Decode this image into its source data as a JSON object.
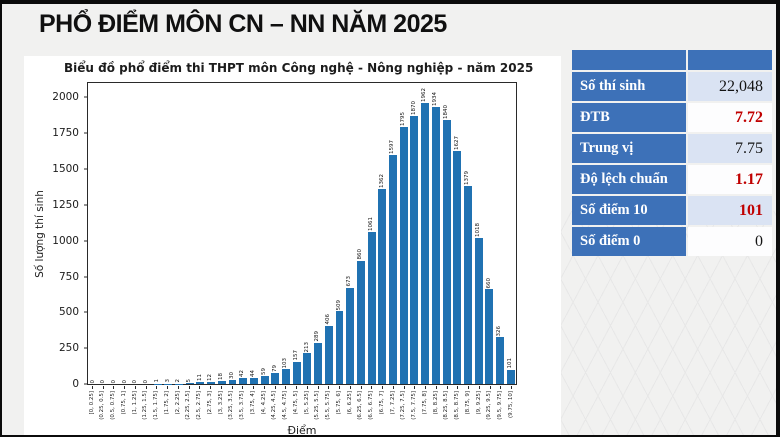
{
  "page": {
    "title": "PHỔ ĐIỂM MÔN CN – NN NĂM 2025"
  },
  "colors": {
    "bar_blue": "#2072b2",
    "table_blue": "#3d71b8",
    "value_red": "#c00000",
    "value_black": "#141414",
    "row_alt": "#dae3f3",
    "row_main": "#fdfdfe"
  },
  "chart_data": {
    "type": "bar",
    "title": "Biểu đồ phổ điểm thi THPT môn Công nghệ - Nông nghiệp - năm 2025",
    "xlabel": "Điểm",
    "ylabel": "Số lượng thí sinh",
    "ylim": [
      0,
      2100
    ],
    "yticks": [
      0,
      250,
      500,
      750,
      1000,
      1250,
      1500,
      1750,
      2000
    ],
    "grid": false,
    "legend": "none",
    "bar_labels_shown": true,
    "categories": [
      "[0, 0.25]",
      "(0.25, 0.5]",
      "(0.5, 0.75]",
      "(0.75, 1]",
      "(1, 1.25]",
      "(1.25, 1.5]",
      "(1.5, 1.75]",
      "(1.75, 2]",
      "(2, 2.25]",
      "(2.25, 2.5]",
      "(2.5, 2.75]",
      "(2.75, 3]",
      "(3, 3.25]",
      "(3.25, 3.5]",
      "(3.5, 3.75]",
      "(3.75, 4]",
      "(4, 4.25]",
      "(4.25, 4.5]",
      "(4.5, 4.75]",
      "(4.75, 5]",
      "(5, 5.25]",
      "(5.25, 5.5]",
      "(5.5, 5.75]",
      "(5.75, 6]",
      "(6, 6.25]",
      "(6.25, 6.5]",
      "(6.5, 6.75]",
      "(6.75, 7]",
      "(7, 7.25]",
      "(7.25, 7.5]",
      "(7.5, 7.75]",
      "(7.75, 8]",
      "(8, 8.25]",
      "(8.25, 8.5]",
      "(8.5, 8.75]",
      "(8.75, 9]",
      "(9, 9.25]",
      "(9.25, 9.5]",
      "(9.5, 9.75]",
      "(9.75, 10]"
    ],
    "values": [
      0,
      0,
      0,
      0,
      0,
      0,
      1,
      3,
      2,
      5,
      11,
      12,
      18,
      30,
      42,
      44,
      59,
      79,
      103,
      157,
      213,
      289,
      406,
      509,
      673,
      860,
      1061,
      1362,
      1597,
      1795,
      1870,
      1962,
      1934,
      1840,
      1627,
      1379,
      1018,
      660,
      326,
      101
    ]
  },
  "stats_table": {
    "header": [
      "",
      ""
    ],
    "rows": [
      {
        "label": "Số thí sinh",
        "value": "22,048",
        "emphasis": "black"
      },
      {
        "label": "ĐTB",
        "value": "7.72",
        "emphasis": "red"
      },
      {
        "label": "Trung vị",
        "value": "7.75",
        "emphasis": "black"
      },
      {
        "label": "Độ lệch chuẩn",
        "value": "1.17",
        "emphasis": "red"
      },
      {
        "label": "Số điểm 10",
        "value": "101",
        "emphasis": "red"
      },
      {
        "label": "Số điểm 0",
        "value": "0",
        "emphasis": "black"
      }
    ]
  }
}
